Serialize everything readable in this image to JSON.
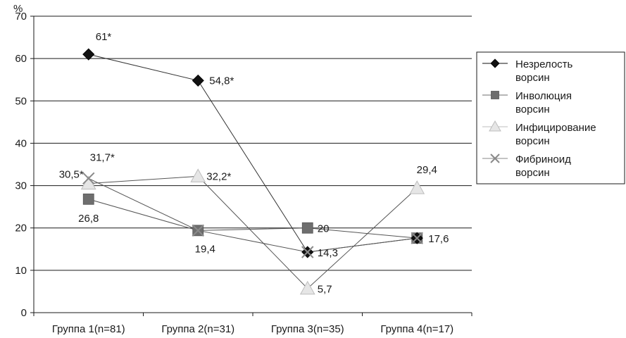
{
  "chart_data": {
    "type": "line",
    "y_unit": "%",
    "categories": [
      "Группа 1(n=81)",
      "Группа 2(n=31)",
      "Группа 3(n=35)",
      "Группа 4(n=17)"
    ],
    "ylim": [
      0,
      70
    ],
    "y_ticks": [
      0,
      10,
      20,
      30,
      40,
      50,
      60,
      70
    ],
    "grid": true,
    "legend_position": "right",
    "series": [
      {
        "name": "Незрелость ворсин",
        "legend_lines": [
          "Незрелость",
          "ворсин"
        ],
        "marker": "diamond",
        "color": "#111111",
        "values": [
          61,
          54.8,
          14.3,
          17.6
        ]
      },
      {
        "name": "Инволюция ворсин",
        "legend_lines": [
          "Инволюция",
          "ворсин"
        ],
        "marker": "square",
        "color": "#6e6e6e",
        "values": [
          26.8,
          19.4,
          20,
          17.6
        ]
      },
      {
        "name": "Инфицирование ворсин",
        "legend_lines": [
          "Инфицирование",
          "ворсин"
        ],
        "marker": "triangle",
        "color": "#bdbdbd",
        "values": [
          30.5,
          32.2,
          5.7,
          29.4
        ]
      },
      {
        "name": "Фибриноид ворсин",
        "legend_lines": [
          "Фибриноид",
          "ворсин"
        ],
        "marker": "cross",
        "color": "#8a8a8a",
        "values": [
          31.7,
          19.4,
          14.3,
          17.6
        ]
      }
    ],
    "data_labels": [
      {
        "text": "61*",
        "series": 0,
        "point": 0,
        "anchor": "start",
        "dx": 10,
        "dy": -20
      },
      {
        "text": "54,8*",
        "series": 0,
        "point": 1,
        "anchor": "start",
        "dx": 16,
        "dy": 5
      },
      {
        "text": "14,3",
        "series": 0,
        "point": 2,
        "anchor": "start",
        "dx": 14,
        "dy": 6
      },
      {
        "text": "17,6",
        "series": 0,
        "point": 3,
        "anchor": "start",
        "dx": 16,
        "dy": 6
      },
      {
        "text": "26,8",
        "series": 1,
        "point": 0,
        "anchor": "middle",
        "dx": 0,
        "dy": 32
      },
      {
        "text": "19,4",
        "series": 1,
        "point": 1,
        "anchor": "middle",
        "dx": 10,
        "dy": 31
      },
      {
        "text": "20",
        "series": 1,
        "point": 2,
        "anchor": "start",
        "dx": 14,
        "dy": 6
      },
      {
        "text": "30,5*",
        "series": 2,
        "point": 0,
        "anchor": "end",
        "dx": -7,
        "dy": -8
      },
      {
        "text": "32,2*",
        "series": 2,
        "point": 1,
        "anchor": "start",
        "dx": 12,
        "dy": 5
      },
      {
        "text": "5,7",
        "series": 2,
        "point": 2,
        "anchor": "start",
        "dx": 14,
        "dy": 6
      },
      {
        "text": "29,4",
        "series": 2,
        "point": 3,
        "anchor": "middle",
        "dx": 14,
        "dy": -21
      },
      {
        "text": "31,7*",
        "series": 3,
        "point": 0,
        "anchor": "start",
        "dx": 2,
        "dy": -25
      }
    ]
  }
}
